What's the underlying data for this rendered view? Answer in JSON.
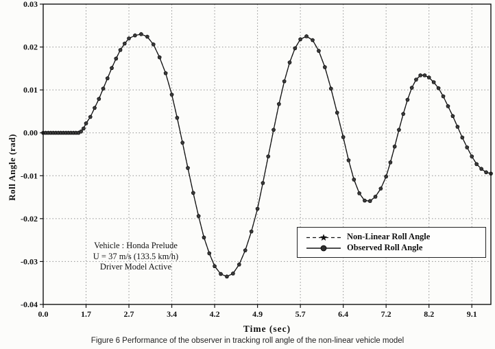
{
  "figure": {
    "caption": "Figure 6  Performance of the observer in tracking roll angle of the non-linear vehicle model"
  },
  "chart_data": {
    "type": "line",
    "title": "",
    "xlabel": "Time (sec)",
    "ylabel": "Roll Angle (rad)",
    "grid": "dotted",
    "legend_position": "right-center",
    "x_tick_labels": [
      "0.0",
      "1.7",
      "2.7",
      "3.4",
      "4.2",
      "4.9",
      "5.7",
      "6.4",
      "7.2",
      "8.2",
      "9.1"
    ],
    "x_tick_values": [
      0,
      1.7,
      2.7,
      3.4,
      4.2,
      4.9,
      5.7,
      6.4,
      7.2,
      8.2,
      9.1
    ],
    "x_max": 9.5,
    "ylim": [
      -0.04,
      0.03
    ],
    "y_ticks": [
      0.03,
      0.02,
      0.01,
      0,
      -0.01,
      -0.02,
      -0.03,
      -0.04
    ],
    "y_tick_labels": [
      "0.03",
      "0.02",
      "0.01",
      "0.00",
      "-0.01",
      "-0.02",
      "-0.03",
      "-0.04"
    ],
    "annotation": [
      "Vehicle : Honda Prelude",
      "U = 37 m/s (133.5 km/h)",
      "Driver Model Active"
    ],
    "x": [
      0,
      0.1,
      0.2,
      0.3,
      0.4,
      0.5,
      0.6,
      0.7,
      0.8,
      0.9,
      1,
      1.1,
      1.2,
      1.3,
      1.4,
      1.5,
      1.6,
      1.7,
      1.8,
      1.9,
      2,
      2.1,
      2.2,
      2.3,
      2.4,
      2.5,
      2.6,
      2.7,
      2.8,
      2.9,
      3,
      3.1,
      3.2,
      3.3,
      3.4,
      3.5,
      3.6,
      3.7,
      3.8,
      3.9,
      4,
      4.1,
      4.2,
      4.3,
      4.4,
      4.5,
      4.6,
      4.7,
      4.8,
      4.9,
      5,
      5.1,
      5.2,
      5.3,
      5.4,
      5.5,
      5.6,
      5.7,
      5.8,
      5.9,
      6,
      6.1,
      6.2,
      6.3,
      6.4,
      6.5,
      6.6,
      6.7,
      6.8,
      6.9,
      7,
      7.1,
      7.2,
      7.3,
      7.4,
      7.5,
      7.6,
      7.7,
      7.8,
      7.9,
      8,
      8.1,
      8.2,
      8.3,
      8.4,
      8.5,
      8.6,
      8.7,
      8.8,
      8.9,
      9,
      9.1,
      9.2,
      9.3,
      9.4,
      9.5
    ],
    "series": [
      {
        "name": "Non-Linear Roll Angle",
        "line": "dashed",
        "marker": "star",
        "color": "#141414",
        "values": [
          0,
          0,
          0,
          0,
          0,
          0,
          0,
          0,
          0,
          0,
          0,
          0,
          0,
          0,
          0,
          0.0003,
          0.001,
          0.0022,
          0.0037,
          0.0058,
          0.0079,
          0.0103,
          0.0127,
          0.0151,
          0.0173,
          0.0193,
          0.0208,
          0.022,
          0.0227,
          0.023,
          0.0224,
          0.0206,
          0.0176,
          0.0139,
          0.0089,
          0.0035,
          -0.0023,
          -0.0082,
          -0.014,
          -0.0194,
          -0.0244,
          -0.0281,
          -0.0311,
          -0.0329,
          -0.0335,
          -0.0328,
          -0.0307,
          -0.0274,
          -0.023,
          -0.0177,
          -0.0117,
          -0.0055,
          0.0007,
          0.0067,
          0.012,
          0.0164,
          0.0197,
          0.0218,
          0.0225,
          0.0216,
          0.0191,
          0.0153,
          0.0103,
          0.0047,
          -0.001,
          -0.0064,
          -0.0109,
          -0.0141,
          -0.0158,
          -0.0159,
          -0.0149,
          -0.013,
          -0.0102,
          -0.0069,
          -0.0032,
          0.0007,
          0.0044,
          0.0077,
          0.0105,
          0.0124,
          0.0134,
          0.0134,
          0.0129,
          0.0118,
          0.0104,
          0.0085,
          0.0062,
          0.0039,
          0.0014,
          -0.0011,
          -0.0034,
          -0.0055,
          -0.0073,
          -0.0084,
          -0.0092,
          -0.0095
        ]
      },
      {
        "name": "Observed Roll Angle",
        "line": "solid",
        "marker": "circle",
        "color": "#2f2f2f",
        "values": [
          0,
          0,
          0,
          0,
          0,
          0,
          0,
          0,
          0,
          0,
          0,
          0,
          0,
          0,
          0,
          0.0003,
          0.001,
          0.0022,
          0.0037,
          0.0058,
          0.0079,
          0.0103,
          0.0127,
          0.0151,
          0.0173,
          0.0193,
          0.0208,
          0.022,
          0.0227,
          0.023,
          0.0224,
          0.0206,
          0.0176,
          0.0139,
          0.0089,
          0.0035,
          -0.0023,
          -0.0082,
          -0.014,
          -0.0194,
          -0.0244,
          -0.0281,
          -0.0311,
          -0.0329,
          -0.0335,
          -0.0328,
          -0.0307,
          -0.0274,
          -0.023,
          -0.0177,
          -0.0117,
          -0.0055,
          0.0007,
          0.0067,
          0.012,
          0.0164,
          0.0197,
          0.0218,
          0.0225,
          0.0216,
          0.0191,
          0.0153,
          0.0103,
          0.0047,
          -0.001,
          -0.0064,
          -0.0109,
          -0.0141,
          -0.0158,
          -0.0159,
          -0.0149,
          -0.013,
          -0.0102,
          -0.0069,
          -0.0032,
          0.0007,
          0.0044,
          0.0077,
          0.0105,
          0.0124,
          0.0134,
          0.0134,
          0.0129,
          0.0118,
          0.0104,
          0.0085,
          0.0062,
          0.0039,
          0.0014,
          -0.0011,
          -0.0034,
          -0.0055,
          -0.0073,
          -0.0084,
          -0.0092,
          -0.0095
        ]
      }
    ]
  }
}
